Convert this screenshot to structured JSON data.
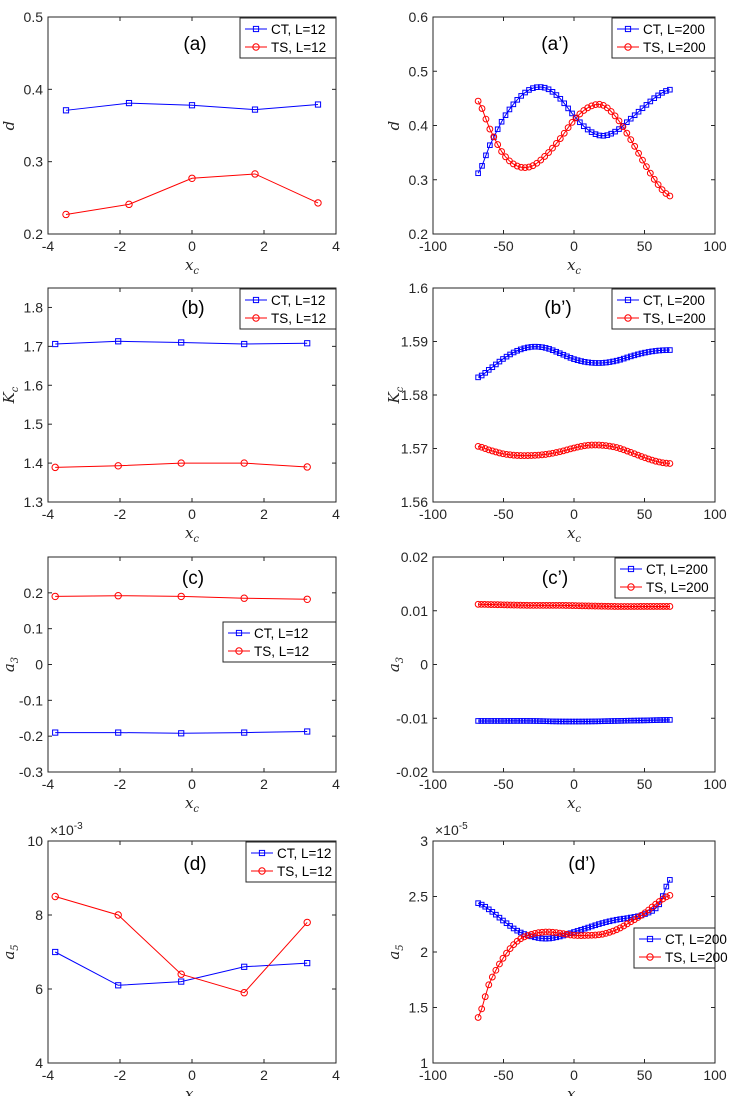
{
  "chart_data": [
    {
      "id": "a",
      "type": "line",
      "panel_label": "(a)",
      "xlabel": "x",
      "xlabel_sub": "c",
      "ylabel": "d",
      "xlim": [
        -4,
        4
      ],
      "ylim": [
        0.2,
        0.5
      ],
      "xticks": [
        -4,
        -2,
        0,
        2,
        4
      ],
      "xtick_labels": [
        "-4",
        "-2",
        "0",
        "2",
        "4"
      ],
      "yticks": [
        0.2,
        0.3,
        0.4,
        0.5
      ],
      "ytick_labels": [
        "0.2",
        "0.3",
        "0.4",
        "0.5"
      ],
      "legend": {
        "position": "top-right"
      },
      "series": [
        {
          "name": "CT, L=12",
          "color": "#0000ff",
          "marker": "square",
          "x": [
            -3.5,
            -1.75,
            0,
            1.75,
            3.5
          ],
          "y": [
            0.371,
            0.381,
            0.378,
            0.372,
            0.379
          ]
        },
        {
          "name": "TS, L=12",
          "color": "#ff0000",
          "marker": "circle",
          "x": [
            -3.5,
            -1.75,
            0,
            1.75,
            3.5
          ],
          "y": [
            0.227,
            0.241,
            0.277,
            0.283,
            0.243
          ]
        }
      ]
    },
    {
      "id": "a2",
      "type": "line",
      "panel_label": "(a’)",
      "xlabel": "x",
      "xlabel_sub": "c",
      "ylabel": "d",
      "xlim": [
        -100,
        100
      ],
      "ylim": [
        0.2,
        0.6
      ],
      "xticks": [
        -100,
        -50,
        0,
        50,
        100
      ],
      "xtick_labels": [
        "-100",
        "-50",
        "0",
        "50",
        "100"
      ],
      "yticks": [
        0.2,
        0.3,
        0.4,
        0.5,
        0.6
      ],
      "ytick_labels": [
        "0.2",
        "0.3",
        "0.4",
        "0.5",
        "0.6"
      ],
      "legend": {
        "position": "top-right"
      },
      "series": [
        {
          "name": "CT, L=200",
          "color": "#0000ff",
          "marker": "square",
          "x": [
            -68,
            -60,
            -50,
            -40,
            -30,
            -20,
            -10,
            0,
            10,
            20,
            30,
            40,
            50,
            60,
            68
          ],
          "y": [
            0.312,
            0.362,
            0.413,
            0.448,
            0.468,
            0.469,
            0.45,
            0.418,
            0.392,
            0.381,
            0.39,
            0.412,
            0.435,
            0.456,
            0.466
          ]
        },
        {
          "name": "TS, L=200",
          "color": "#ff0000",
          "marker": "circle",
          "x": [
            -68,
            -60,
            -50,
            -40,
            -30,
            -20,
            -10,
            0,
            10,
            20,
            30,
            40,
            50,
            60,
            68
          ],
          "y": [
            0.445,
            0.395,
            0.347,
            0.325,
            0.325,
            0.345,
            0.375,
            0.41,
            0.433,
            0.438,
            0.415,
            0.375,
            0.33,
            0.29,
            0.27
          ]
        }
      ]
    },
    {
      "id": "b",
      "type": "line",
      "panel_label": "(b)",
      "xlabel": "x",
      "xlabel_sub": "c",
      "ylabel": "K",
      "ylabel_sub": "c",
      "xlim": [
        -4,
        4
      ],
      "ylim": [
        1.3,
        1.85
      ],
      "xticks": [
        -4,
        -2,
        0,
        2,
        4
      ],
      "xtick_labels": [
        "-4",
        "-2",
        "0",
        "2",
        "4"
      ],
      "yticks": [
        1.3,
        1.4,
        1.5,
        1.6,
        1.7,
        1.8
      ],
      "ytick_labels": [
        "1.3",
        "1.4",
        "1.5",
        "1.6",
        "1.7",
        "1.8"
      ],
      "legend": {
        "position": "top-right"
      },
      "series": [
        {
          "name": "CT, L=12",
          "color": "#0000ff",
          "marker": "square",
          "x": [
            -3.8,
            -2.05,
            -0.3,
            1.45,
            3.2
          ],
          "y": [
            1.706,
            1.713,
            1.71,
            1.706,
            1.708
          ]
        },
        {
          "name": "TS, L=12",
          "color": "#ff0000",
          "marker": "circle",
          "x": [
            -3.8,
            -2.05,
            -0.3,
            1.45,
            3.2
          ],
          "y": [
            1.389,
            1.393,
            1.4,
            1.4,
            1.39
          ]
        }
      ]
    },
    {
      "id": "b2",
      "type": "line",
      "panel_label": "(b’)",
      "xlabel": "x",
      "xlabel_sub": "c",
      "ylabel": "K",
      "ylabel_sub": "c",
      "xlim": [
        -100,
        100
      ],
      "ylim": [
        1.56,
        1.6
      ],
      "xticks": [
        -100,
        -50,
        0,
        50,
        100
      ],
      "xtick_labels": [
        "-100",
        "-50",
        "0",
        "50",
        "100"
      ],
      "yticks": [
        1.56,
        1.57,
        1.58,
        1.59,
        1.6
      ],
      "ytick_labels": [
        "1.56",
        "1.57",
        "1.58",
        "1.59",
        "1.6"
      ],
      "legend": {
        "position": "top-right"
      },
      "series": [
        {
          "name": "CT, L=200",
          "color": "#0000ff",
          "marker": "square",
          "x": [
            -68,
            -60,
            -50,
            -40,
            -30,
            -20,
            -10,
            0,
            10,
            20,
            30,
            40,
            50,
            60,
            68
          ],
          "y": [
            1.5833,
            1.5848,
            1.5868,
            1.5883,
            1.589,
            1.5888,
            1.5878,
            1.5867,
            1.5861,
            1.586,
            1.5864,
            1.5872,
            1.5879,
            1.5883,
            1.5884
          ]
        },
        {
          "name": "TS, L=200",
          "color": "#ff0000",
          "marker": "circle",
          "x": [
            -68,
            -60,
            -50,
            -40,
            -30,
            -20,
            -10,
            0,
            10,
            20,
            30,
            40,
            50,
            60,
            68
          ],
          "y": [
            1.5704,
            1.5697,
            1.569,
            1.5687,
            1.5687,
            1.5689,
            1.5694,
            1.5701,
            1.5706,
            1.5706,
            1.5702,
            1.5693,
            1.5683,
            1.5675,
            1.5672
          ]
        }
      ]
    },
    {
      "id": "c",
      "type": "line",
      "panel_label": "(c)",
      "xlabel": "x",
      "xlabel_sub": "c",
      "ylabel": "a",
      "ylabel_sub": "3",
      "xlim": [
        -4,
        4
      ],
      "ylim": [
        -0.3,
        0.3
      ],
      "xticks": [
        -4,
        -2,
        0,
        2,
        4
      ],
      "xtick_labels": [
        "-4",
        "-2",
        "0",
        "2",
        "4"
      ],
      "yticks": [
        -0.3,
        -0.2,
        -0.1,
        0,
        0.1,
        0.2
      ],
      "ytick_labels": [
        "-0.3",
        "-0.2",
        "-0.1",
        "0",
        "0.1",
        "0.2"
      ],
      "legend": {
        "position": "right"
      },
      "series": [
        {
          "name": "CT, L=12",
          "color": "#0000ff",
          "marker": "square",
          "x": [
            -3.8,
            -2.05,
            -0.3,
            1.45,
            3.2
          ],
          "y": [
            -0.19,
            -0.19,
            -0.192,
            -0.19,
            -0.187
          ]
        },
        {
          "name": "TS, L=12",
          "color": "#ff0000",
          "marker": "circle",
          "x": [
            -3.8,
            -2.05,
            -0.3,
            1.45,
            3.2
          ],
          "y": [
            0.19,
            0.192,
            0.19,
            0.185,
            0.182
          ]
        }
      ]
    },
    {
      "id": "c2",
      "type": "line",
      "panel_label": "(c’)",
      "xlabel": "x",
      "xlabel_sub": "c",
      "ylabel": "a",
      "ylabel_sub": "3",
      "xlim": [
        -100,
        100
      ],
      "ylim": [
        -0.02,
        0.02
      ],
      "xticks": [
        -100,
        -50,
        0,
        50,
        100
      ],
      "xtick_labels": [
        "-100",
        "-50",
        "0",
        "50",
        "100"
      ],
      "yticks": [
        -0.02,
        -0.01,
        0,
        0.01,
        0.02
      ],
      "ytick_labels": [
        "-0.02",
        "-0.01",
        "0",
        "0.01",
        "0.02"
      ],
      "legend": {
        "position": "top-right"
      },
      "series": [
        {
          "name": "CT, L=200",
          "color": "#0000ff",
          "marker": "square",
          "x": [
            -68,
            -50,
            -30,
            -10,
            10,
            30,
            50,
            68
          ],
          "y": [
            -0.0105,
            -0.0105,
            -0.0105,
            -0.0106,
            -0.0106,
            -0.0105,
            -0.0104,
            -0.0103
          ]
        },
        {
          "name": "TS, L=200",
          "color": "#ff0000",
          "marker": "circle",
          "x": [
            -68,
            -50,
            -30,
            -10,
            10,
            30,
            50,
            68
          ],
          "y": [
            0.0112,
            0.0111,
            0.011,
            0.011,
            0.0109,
            0.0108,
            0.0108,
            0.0108
          ]
        }
      ]
    },
    {
      "id": "d",
      "type": "line",
      "panel_label": "(d)",
      "xlabel": "x",
      "xlabel_sub": "c",
      "ylabel": "a",
      "ylabel_sub": "5",
      "multiplier_base": "×10",
      "multiplier_exp": "-3",
      "xlim": [
        -4,
        4
      ],
      "ylim": [
        4,
        10
      ],
      "xticks": [
        -4,
        -2,
        0,
        2,
        4
      ],
      "xtick_labels": [
        "-4",
        "-2",
        "0",
        "2",
        "4"
      ],
      "yticks": [
        4,
        6,
        8,
        10
      ],
      "ytick_labels": [
        "4",
        "6",
        "8",
        "10"
      ],
      "legend": {
        "position": "top-right"
      },
      "series": [
        {
          "name": "CT, L=12",
          "color": "#0000ff",
          "marker": "square",
          "x": [
            -3.8,
            -2.05,
            -0.3,
            1.45,
            3.2
          ],
          "y": [
            7.0,
            6.1,
            6.2,
            6.6,
            6.7
          ]
        },
        {
          "name": "TS, L=12",
          "color": "#ff0000",
          "marker": "circle",
          "x": [
            -3.8,
            -2.05,
            -0.3,
            1.45,
            3.2
          ],
          "y": [
            8.5,
            8.0,
            6.4,
            5.9,
            7.8
          ]
        }
      ]
    },
    {
      "id": "d2",
      "type": "line",
      "panel_label": "(d’)",
      "xlabel": "x",
      "xlabel_sub": "c",
      "ylabel": "a",
      "ylabel_sub": "5",
      "multiplier_base": "×10",
      "multiplier_exp": "-5",
      "xlim": [
        -100,
        100
      ],
      "ylim": [
        1,
        3
      ],
      "xticks": [
        -100,
        -50,
        0,
        50,
        100
      ],
      "xtick_labels": [
        "-100",
        "-50",
        "0",
        "50",
        "100"
      ],
      "yticks": [
        1,
        1.5,
        2,
        2.5,
        3
      ],
      "ytick_labels": [
        "1",
        "1.5",
        "2",
        "2.5",
        "3"
      ],
      "legend": {
        "position": "lower-right"
      },
      "series": [
        {
          "name": "CT, L=200",
          "color": "#0000ff",
          "marker": "square",
          "x": [
            -68,
            -60,
            -50,
            -40,
            -30,
            -20,
            -10,
            0,
            10,
            20,
            30,
            40,
            50,
            60,
            68
          ],
          "y": [
            2.44,
            2.38,
            2.28,
            2.19,
            2.14,
            2.12,
            2.14,
            2.18,
            2.22,
            2.26,
            2.29,
            2.31,
            2.34,
            2.42,
            2.65
          ]
        },
        {
          "name": "TS, L=200",
          "color": "#ff0000",
          "marker": "circle",
          "x": [
            -68,
            -60,
            -50,
            -40,
            -30,
            -20,
            -10,
            0,
            10,
            20,
            30,
            40,
            50,
            60,
            68
          ],
          "y": [
            1.41,
            1.72,
            1.95,
            2.1,
            2.16,
            2.18,
            2.17,
            2.15,
            2.15,
            2.16,
            2.2,
            2.27,
            2.35,
            2.45,
            2.51
          ]
        }
      ]
    }
  ]
}
